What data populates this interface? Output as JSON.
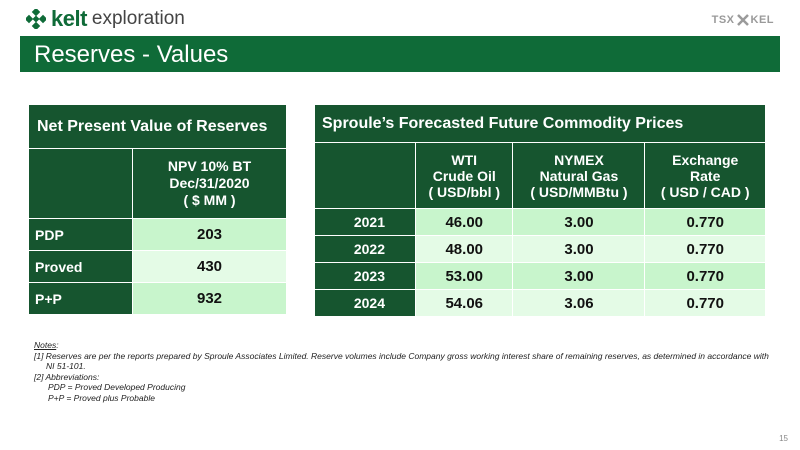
{
  "header": {
    "logo_bold": "kelt",
    "logo_light": "exploration",
    "exchange_left": "TSX",
    "exchange_right": "KEL"
  },
  "title": "Reserves - Values",
  "npv_table": {
    "title": "Net Present Value of Reserves",
    "column_header": [
      "NPV 10% BT",
      "Dec/31/2020",
      "( $ MM )"
    ],
    "rows": [
      {
        "label": "PDP",
        "value": "203"
      },
      {
        "label": "Proved",
        "value": "430"
      },
      {
        "label": "P+P",
        "value": "932"
      }
    ]
  },
  "price_table": {
    "title": "Sproule’s Forecasted Future Commodity Prices",
    "columns": [
      [
        "WTI",
        "Crude Oil",
        "( USD/bbl )"
      ],
      [
        "NYMEX",
        "Natural Gas",
        "( USD/MMBtu )"
      ],
      [
        "Exchange",
        "Rate",
        "( USD / CAD )"
      ]
    ],
    "rows": [
      {
        "year": "2021",
        "wti": "46.00",
        "nymex": "3.00",
        "fx": "0.770"
      },
      {
        "year": "2022",
        "wti": "48.00",
        "nymex": "3.00",
        "fx": "0.770"
      },
      {
        "year": "2023",
        "wti": "53.00",
        "nymex": "3.00",
        "fx": "0.770"
      },
      {
        "year": "2024",
        "wti": "54.06",
        "nymex": "3.06",
        "fx": "0.770"
      }
    ]
  },
  "notes": {
    "heading": "Notes",
    "line1": "[1] Reserves are per the reports prepared by Sproule Associates Limited. Reserve volumes include Company gross working interest share of remaining reserves, as determined in accordance with",
    "line1b": "NI 51-101.",
    "line2": "[2] Abbreviations:",
    "abbr1": "PDP = Proved Developed Producing",
    "abbr2": "P+P = Proved plus Probable"
  },
  "page_number": "15",
  "colors": {
    "brand_green": "#0f6b38",
    "table_header": "#16552f",
    "cell_light": "#c8f5cc",
    "cell_lighter": "#e4fbe6"
  }
}
